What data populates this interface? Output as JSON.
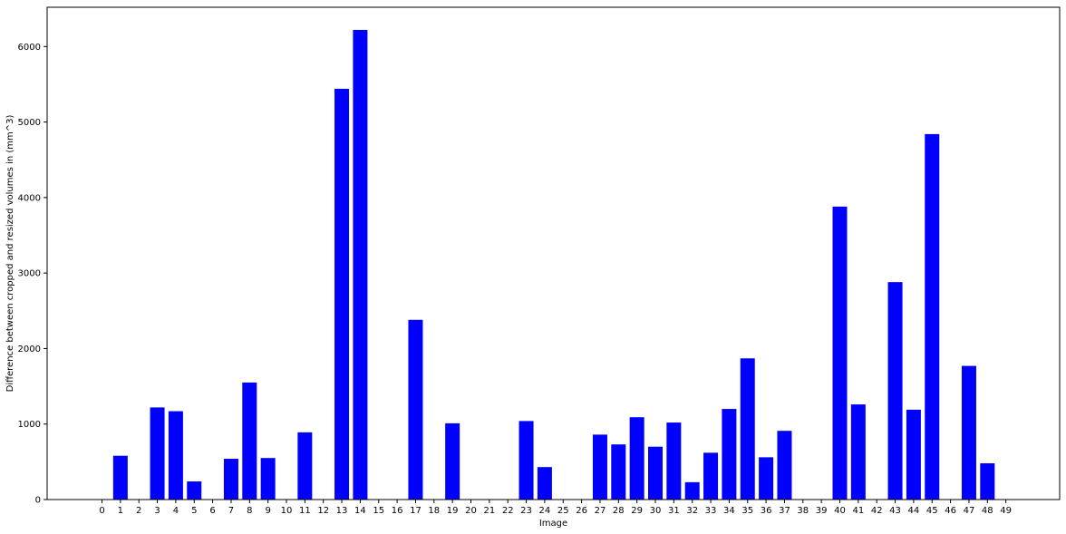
{
  "chart_data": {
    "type": "bar",
    "title": "",
    "xlabel": "Image",
    "ylabel": "Difference between cropped and resized volumes in (mm^3)",
    "categories": [
      "0",
      "1",
      "2",
      "3",
      "4",
      "5",
      "6",
      "7",
      "8",
      "9",
      "10",
      "11",
      "12",
      "13",
      "14",
      "15",
      "16",
      "17",
      "18",
      "19",
      "20",
      "21",
      "22",
      "23",
      "24",
      "25",
      "26",
      "27",
      "28",
      "29",
      "30",
      "31",
      "32",
      "33",
      "34",
      "35",
      "36",
      "37",
      "38",
      "39",
      "40",
      "41",
      "42",
      "43",
      "44",
      "45",
      "46",
      "47",
      "48",
      "49"
    ],
    "values": [
      0,
      580,
      0,
      1220,
      1170,
      240,
      0,
      540,
      1550,
      550,
      0,
      890,
      0,
      5440,
      6220,
      0,
      0,
      2380,
      0,
      1010,
      0,
      0,
      0,
      1040,
      430,
      0,
      0,
      860,
      730,
      1090,
      700,
      1020,
      230,
      620,
      1200,
      1870,
      560,
      910,
      0,
      0,
      3880,
      1260,
      0,
      2880,
      1190,
      4840,
      0,
      1770,
      480,
      0
    ],
    "yticks": [
      0,
      1000,
      2000,
      3000,
      4000,
      5000,
      6000
    ],
    "ylim": [
      0,
      6520
    ],
    "bar_color": "#0000ff",
    "grid": false
  }
}
